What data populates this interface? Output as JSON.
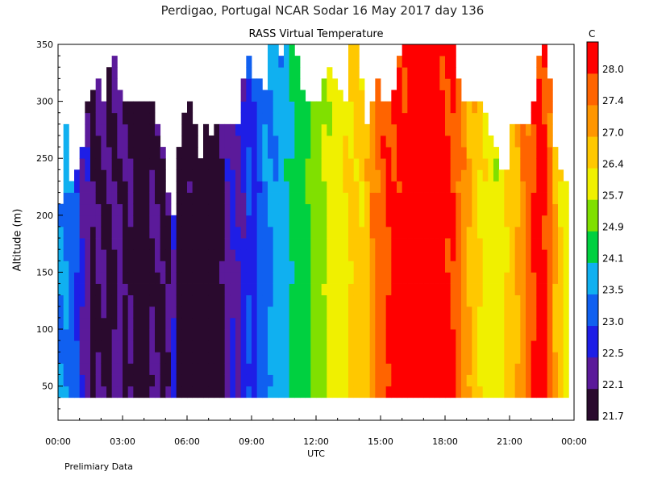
{
  "header": {
    "title": "Perdigao, Portugal  NCAR Sodar  16 May 2017  day 136",
    "subtitle": "RASS Virtual Temperature",
    "colorbar_unit": "C",
    "footer": "Prelimiary Data"
  },
  "chart_data": {
    "type": "heatmap",
    "title": "RASS Virtual Temperature",
    "xlabel": "UTC",
    "ylabel": "Altitude (m)",
    "x_ticks": [
      "00:00",
      "03:00",
      "06:00",
      "09:00",
      "12:00",
      "15:00",
      "18:00",
      "21:00",
      "00:00"
    ],
    "y_ticks": [
      50,
      100,
      150,
      200,
      250,
      300,
      350
    ],
    "ylim": [
      20,
      350
    ],
    "xlim_hours": [
      0,
      24
    ],
    "colorbar": {
      "levels": [
        21.7,
        22.1,
        22.5,
        23.0,
        23.5,
        24.1,
        24.9,
        25.7,
        26.4,
        27.0,
        27.4,
        28.0
      ],
      "colors": [
        "#2a0a2e",
        "#5b1a9a",
        "#1e1ee6",
        "#1060f0",
        "#10b0f0",
        "#00d040",
        "#80e000",
        "#f0f000",
        "#ffc800",
        "#ff9600",
        "#ff6400",
        "#ff0000"
      ]
    },
    "columns": [
      {
        "h": 0.0,
        "top": 210,
        "t": 23.5
      },
      {
        "h": 0.25,
        "top": 280,
        "t": 23.5
      },
      {
        "h": 0.5,
        "top": 230,
        "t": 23.3
      },
      {
        "h": 0.75,
        "top": 240,
        "t": 23.0
      },
      {
        "h": 1.0,
        "top": 260,
        "t": 22.5
      },
      {
        "h": 1.25,
        "top": 300,
        "t": 22.3
      },
      {
        "h": 1.5,
        "top": 310,
        "t": 22.0
      },
      {
        "h": 1.75,
        "top": 320,
        "t": 22.1
      },
      {
        "h": 2.0,
        "top": 300,
        "t": 22.1
      },
      {
        "h": 2.25,
        "top": 330,
        "t": 22.0
      },
      {
        "h": 2.5,
        "top": 340,
        "t": 22.1
      },
      {
        "h": 2.75,
        "top": 310,
        "t": 22.2
      },
      {
        "h": 3.0,
        "top": 300,
        "t": 22.0
      },
      {
        "h": 3.25,
        "top": 300,
        "t": 22.1
      },
      {
        "h": 3.5,
        "top": 300,
        "t": 21.8
      },
      {
        "h": 3.75,
        "top": 300,
        "t": 21.7
      },
      {
        "h": 4.0,
        "top": 300,
        "t": 21.8
      },
      {
        "h": 4.25,
        "top": 300,
        "t": 22.1
      },
      {
        "h": 4.5,
        "top": 280,
        "t": 22.1
      },
      {
        "h": 4.75,
        "top": 260,
        "t": 22.0
      },
      {
        "h": 5.0,
        "top": 220,
        "t": 22.1
      },
      {
        "h": 5.25,
        "top": 200,
        "t": 22.5
      },
      {
        "h": 5.5,
        "top": 260,
        "t": 21.8
      },
      {
        "h": 5.75,
        "top": 290,
        "t": 21.7
      },
      {
        "h": 6.0,
        "top": 300,
        "t": 21.9
      },
      {
        "h": 6.25,
        "top": 280,
        "t": 21.7
      },
      {
        "h": 6.5,
        "top": 250,
        "t": 21.8
      },
      {
        "h": 6.75,
        "top": 280,
        "t": 21.7
      },
      {
        "h": 7.0,
        "top": 270,
        "t": 21.8
      },
      {
        "h": 7.25,
        "top": 280,
        "t": 21.7
      },
      {
        "h": 7.5,
        "top": 280,
        "t": 22.0
      },
      {
        "h": 7.75,
        "top": 280,
        "t": 22.3
      },
      {
        "h": 8.0,
        "top": 280,
        "t": 22.5
      },
      {
        "h": 8.25,
        "top": 280,
        "t": 22.4
      },
      {
        "h": 8.5,
        "top": 320,
        "t": 22.6
      },
      {
        "h": 8.75,
        "top": 340,
        "t": 23.0
      },
      {
        "h": 9.0,
        "top": 320,
        "t": 22.8
      },
      {
        "h": 9.25,
        "top": 320,
        "t": 23.2
      },
      {
        "h": 9.5,
        "top": 310,
        "t": 23.4
      },
      {
        "h": 9.75,
        "top": 350,
        "t": 23.5
      },
      {
        "h": 10.0,
        "top": 350,
        "t": 23.6
      },
      {
        "h": 10.25,
        "top": 340,
        "t": 23.8
      },
      {
        "h": 10.5,
        "top": 350,
        "t": 23.9
      },
      {
        "h": 10.75,
        "top": 350,
        "t": 24.2
      },
      {
        "h": 11.0,
        "top": 340,
        "t": 24.4
      },
      {
        "h": 11.25,
        "top": 310,
        "t": 24.6
      },
      {
        "h": 11.5,
        "top": 300,
        "t": 24.8
      },
      {
        "h": 11.75,
        "top": 300,
        "t": 25.2
      },
      {
        "h": 12.0,
        "top": 300,
        "t": 25.3
      },
      {
        "h": 12.25,
        "top": 320,
        "t": 25.6
      },
      {
        "h": 12.5,
        "top": 330,
        "t": 25.9
      },
      {
        "h": 12.75,
        "top": 320,
        "t": 26.0
      },
      {
        "h": 13.0,
        "top": 310,
        "t": 26.1
      },
      {
        "h": 13.25,
        "top": 300,
        "t": 26.3
      },
      {
        "h": 13.5,
        "top": 350,
        "t": 26.5
      },
      {
        "h": 13.75,
        "top": 350,
        "t": 26.6
      },
      {
        "h": 14.0,
        "top": 320,
        "t": 26.5
      },
      {
        "h": 14.25,
        "top": 280,
        "t": 26.8
      },
      {
        "h": 14.5,
        "top": 300,
        "t": 27.3
      },
      {
        "h": 14.75,
        "top": 320,
        "t": 27.6
      },
      {
        "h": 15.0,
        "top": 300,
        "t": 27.8
      },
      {
        "h": 15.25,
        "top": 300,
        "t": 28.0
      },
      {
        "h": 15.5,
        "top": 310,
        "t": 28.1
      },
      {
        "h": 15.75,
        "top": 340,
        "t": 28.2
      },
      {
        "h": 16.0,
        "top": 350,
        "t": 28.2
      },
      {
        "h": 16.25,
        "top": 350,
        "t": 28.3
      },
      {
        "h": 16.5,
        "top": 350,
        "t": 28.3
      },
      {
        "h": 16.75,
        "top": 350,
        "t": 28.4
      },
      {
        "h": 17.0,
        "top": 350,
        "t": 28.4
      },
      {
        "h": 17.25,
        "top": 350,
        "t": 28.4
      },
      {
        "h": 17.5,
        "top": 350,
        "t": 28.3
      },
      {
        "h": 17.75,
        "top": 350,
        "t": 28.2
      },
      {
        "h": 18.0,
        "top": 350,
        "t": 28.1
      },
      {
        "h": 18.25,
        "top": 350,
        "t": 28.0
      },
      {
        "h": 18.5,
        "top": 320,
        "t": 27.6
      },
      {
        "h": 18.75,
        "top": 300,
        "t": 27.2
      },
      {
        "h": 19.0,
        "top": 300,
        "t": 27.0
      },
      {
        "h": 19.25,
        "top": 300,
        "t": 26.8
      },
      {
        "h": 19.5,
        "top": 300,
        "t": 26.4
      },
      {
        "h": 19.75,
        "top": 290,
        "t": 26.2
      },
      {
        "h": 20.0,
        "top": 270,
        "t": 26.0
      },
      {
        "h": 20.25,
        "top": 260,
        "t": 25.9
      },
      {
        "h": 20.5,
        "top": 240,
        "t": 26.1
      },
      {
        "h": 20.75,
        "top": 240,
        "t": 26.5
      },
      {
        "h": 21.0,
        "top": 280,
        "t": 26.8
      },
      {
        "h": 21.25,
        "top": 280,
        "t": 27.0
      },
      {
        "h": 21.5,
        "top": 280,
        "t": 27.3
      },
      {
        "h": 21.75,
        "top": 280,
        "t": 27.6
      },
      {
        "h": 22.0,
        "top": 300,
        "t": 28.0
      },
      {
        "h": 22.25,
        "top": 340,
        "t": 28.2
      },
      {
        "h": 22.5,
        "top": 350,
        "t": 28.1
      },
      {
        "h": 22.75,
        "top": 320,
        "t": 27.6
      },
      {
        "h": 23.0,
        "top": 260,
        "t": 27.0
      },
      {
        "h": 23.25,
        "top": 240,
        "t": 26.5
      },
      {
        "h": 23.5,
        "top": 230,
        "t": 26.0
      }
    ]
  }
}
